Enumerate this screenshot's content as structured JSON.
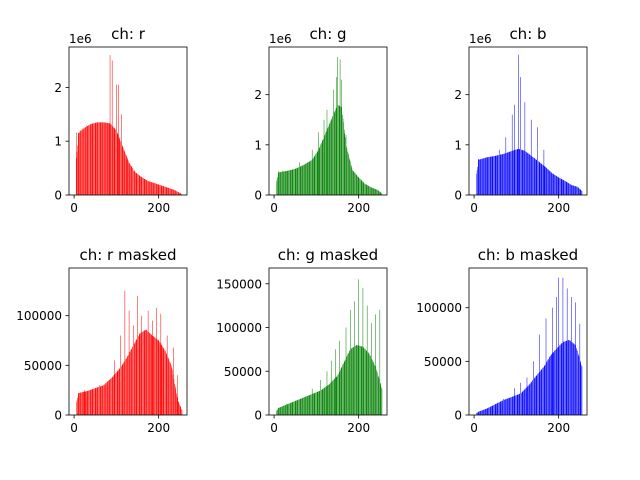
{
  "chart_data": [
    {
      "type": "bar",
      "title": "ch: r",
      "color": "#ff0000",
      "offset_text": "1e6",
      "xlim": [
        -12,
        267
      ],
      "ylim": [
        0,
        2750000
      ],
      "xticks": [
        {
          "value": 0,
          "label": "0"
        },
        {
          "value": 200,
          "label": "200"
        }
      ],
      "yticks": [
        {
          "value": 0,
          "label": "0"
        },
        {
          "value": 1000000,
          "label": "1"
        },
        {
          "value": 2000000,
          "label": "2"
        }
      ],
      "envelope": [
        [
          0,
          0
        ],
        [
          10,
          1150000
        ],
        [
          25,
          1250000
        ],
        [
          40,
          1320000
        ],
        [
          55,
          1350000
        ],
        [
          70,
          1350000
        ],
        [
          85,
          1330000
        ],
        [
          100,
          1200000
        ],
        [
          115,
          900000
        ],
        [
          130,
          600000
        ],
        [
          145,
          420000
        ],
        [
          160,
          330000
        ],
        [
          175,
          260000
        ],
        [
          190,
          220000
        ],
        [
          205,
          180000
        ],
        [
          220,
          140000
        ],
        [
          235,
          100000
        ],
        [
          250,
          40000
        ],
        [
          255,
          10000
        ]
      ],
      "spikes": [
        [
          5,
          1160000
        ],
        [
          15,
          1200000
        ],
        [
          20,
          1230000
        ],
        [
          30,
          1290000
        ],
        [
          85,
          2600000
        ],
        [
          90,
          2500000
        ],
        [
          100,
          2050000
        ],
        [
          105,
          2050000
        ],
        [
          112,
          1500000
        ],
        [
          125,
          700000
        ],
        [
          140,
          450000
        ]
      ],
      "gap_every": 4,
      "x_start": 5,
      "x_end": 255
    },
    {
      "type": "bar",
      "title": "ch: g",
      "color": "#008000",
      "offset_text": "1e6",
      "xlim": [
        -12,
        267
      ],
      "ylim": [
        0,
        2950000
      ],
      "xticks": [
        {
          "value": 0,
          "label": "0"
        },
        {
          "value": 200,
          "label": "200"
        }
      ],
      "yticks": [
        {
          "value": 0,
          "label": "0"
        },
        {
          "value": 1000000,
          "label": "1"
        },
        {
          "value": 2000000,
          "label": "2"
        }
      ],
      "envelope": [
        [
          0,
          0
        ],
        [
          10,
          450000
        ],
        [
          30,
          480000
        ],
        [
          50,
          520000
        ],
        [
          70,
          600000
        ],
        [
          90,
          700000
        ],
        [
          105,
          900000
        ],
        [
          120,
          1200000
        ],
        [
          135,
          1500000
        ],
        [
          150,
          1800000
        ],
        [
          160,
          1750000
        ],
        [
          170,
          1000000
        ],
        [
          185,
          500000
        ],
        [
          200,
          350000
        ],
        [
          215,
          220000
        ],
        [
          230,
          150000
        ],
        [
          245,
          100000
        ],
        [
          255,
          30000
        ]
      ],
      "spikes": [
        [
          10,
          470000
        ],
        [
          20,
          480000
        ],
        [
          60,
          650000
        ],
        [
          90,
          900000
        ],
        [
          105,
          1250000
        ],
        [
          118,
          1500000
        ],
        [
          125,
          1700000
        ],
        [
          140,
          2100000
        ],
        [
          148,
          2350000
        ],
        [
          150,
          2750000
        ],
        [
          156,
          2700000
        ],
        [
          160,
          2300000
        ],
        [
          170,
          1200000
        ]
      ],
      "gap_every": 4,
      "x_start": 5,
      "x_end": 255
    },
    {
      "type": "bar",
      "title": "ch: b",
      "color": "#0000ff",
      "offset_text": "1e6",
      "xlim": [
        -12,
        267
      ],
      "ylim": [
        0,
        2950000
      ],
      "xticks": [
        {
          "value": 0,
          "label": "0"
        },
        {
          "value": 200,
          "label": "200"
        }
      ],
      "yticks": [
        {
          "value": 0,
          "label": "0"
        },
        {
          "value": 1000000,
          "label": "1"
        },
        {
          "value": 2000000,
          "label": "2"
        }
      ],
      "envelope": [
        [
          0,
          0
        ],
        [
          10,
          700000
        ],
        [
          30,
          750000
        ],
        [
          50,
          780000
        ],
        [
          70,
          820000
        ],
        [
          90,
          880000
        ],
        [
          105,
          920000
        ],
        [
          120,
          880000
        ],
        [
          140,
          750000
        ],
        [
          155,
          650000
        ],
        [
          170,
          550000
        ],
        [
          185,
          430000
        ],
        [
          200,
          350000
        ],
        [
          215,
          280000
        ],
        [
          230,
          200000
        ],
        [
          245,
          160000
        ],
        [
          255,
          80000
        ]
      ],
      "spikes": [
        [
          10,
          720000
        ],
        [
          60,
          900000
        ],
        [
          75,
          1150000
        ],
        [
          90,
          1600000
        ],
        [
          95,
          1800000
        ],
        [
          105,
          2800000
        ],
        [
          110,
          2350000
        ],
        [
          120,
          1850000
        ],
        [
          135,
          1500000
        ],
        [
          150,
          1350000
        ],
        [
          165,
          900000
        ]
      ],
      "gap_every": 4,
      "x_start": 5,
      "x_end": 255
    },
    {
      "type": "bar",
      "title": "ch: r masked",
      "color": "#ff0000",
      "offset_text": "",
      "xlim": [
        -12,
        267
      ],
      "ylim": [
        0,
        148000
      ],
      "xticks": [
        {
          "value": 0,
          "label": "0"
        },
        {
          "value": 200,
          "label": "200"
        }
      ],
      "yticks": [
        {
          "value": 0,
          "label": "0"
        },
        {
          "value": 50000,
          "label": "50000"
        },
        {
          "value": 100000,
          "label": "100000"
        }
      ],
      "envelope": [
        [
          0,
          0
        ],
        [
          10,
          22000
        ],
        [
          30,
          24000
        ],
        [
          50,
          27000
        ],
        [
          70,
          30000
        ],
        [
          90,
          38000
        ],
        [
          110,
          48000
        ],
        [
          125,
          58000
        ],
        [
          140,
          70000
        ],
        [
          155,
          82000
        ],
        [
          170,
          86000
        ],
        [
          185,
          80000
        ],
        [
          200,
          75000
        ],
        [
          215,
          65000
        ],
        [
          230,
          50000
        ],
        [
          245,
          15000
        ],
        [
          255,
          5000
        ]
      ],
      "spikes": [
        [
          10,
          22000
        ],
        [
          25,
          25000
        ],
        [
          60,
          30000
        ],
        [
          95,
          55000
        ],
        [
          110,
          80000
        ],
        [
          120,
          125000
        ],
        [
          130,
          105000
        ],
        [
          140,
          90000
        ],
        [
          150,
          120000
        ],
        [
          160,
          100000
        ],
        [
          175,
          105000
        ],
        [
          185,
          95000
        ],
        [
          195,
          108000
        ],
        [
          205,
          102000
        ],
        [
          220,
          80000
        ],
        [
          235,
          68000
        ],
        [
          245,
          40000
        ]
      ],
      "gap_every": 4,
      "x_start": 5,
      "x_end": 255
    },
    {
      "type": "bar",
      "title": "ch: g masked",
      "color": "#008000",
      "offset_text": "",
      "xlim": [
        -12,
        267
      ],
      "ylim": [
        0,
        168000
      ],
      "xticks": [
        {
          "value": 0,
          "label": "0"
        },
        {
          "value": 200,
          "label": "200"
        }
      ],
      "yticks": [
        {
          "value": 0,
          "label": "0"
        },
        {
          "value": 50000,
          "label": "50000"
        },
        {
          "value": 100000,
          "label": "100000"
        },
        {
          "value": 150000,
          "label": "150000"
        }
      ],
      "envelope": [
        [
          0,
          0
        ],
        [
          10,
          8000
        ],
        [
          30,
          12000
        ],
        [
          50,
          16000
        ],
        [
          70,
          20000
        ],
        [
          90,
          24000
        ],
        [
          110,
          28000
        ],
        [
          130,
          35000
        ],
        [
          150,
          45000
        ],
        [
          165,
          60000
        ],
        [
          180,
          75000
        ],
        [
          195,
          80000
        ],
        [
          210,
          78000
        ],
        [
          225,
          70000
        ],
        [
          240,
          55000
        ],
        [
          255,
          30000
        ]
      ],
      "spikes": [
        [
          10,
          8000
        ],
        [
          30,
          13000
        ],
        [
          60,
          18000
        ],
        [
          90,
          30000
        ],
        [
          110,
          40000
        ],
        [
          125,
          50000
        ],
        [
          135,
          62000
        ],
        [
          145,
          75000
        ],
        [
          155,
          85000
        ],
        [
          170,
          100000
        ],
        [
          180,
          120000
        ],
        [
          190,
          130000
        ],
        [
          200,
          155000
        ],
        [
          210,
          145000
        ],
        [
          220,
          125000
        ],
        [
          230,
          105000
        ],
        [
          240,
          115000
        ],
        [
          250,
          120000
        ]
      ],
      "gap_every": 4,
      "x_start": 5,
      "x_end": 255
    },
    {
      "type": "bar",
      "title": "ch: b masked",
      "color": "#0000ff",
      "offset_text": "",
      "xlim": [
        -12,
        267
      ],
      "ylim": [
        0,
        137000
      ],
      "xticks": [
        {
          "value": 0,
          "label": "0"
        },
        {
          "value": 200,
          "label": "200"
        }
      ],
      "yticks": [
        {
          "value": 0,
          "label": "0"
        },
        {
          "value": 50000,
          "label": "50000"
        },
        {
          "value": 100000,
          "label": "100000"
        }
      ],
      "envelope": [
        [
          0,
          0
        ],
        [
          10,
          3000
        ],
        [
          30,
          6000
        ],
        [
          50,
          10000
        ],
        [
          70,
          14000
        ],
        [
          90,
          17000
        ],
        [
          110,
          20000
        ],
        [
          130,
          28000
        ],
        [
          150,
          38000
        ],
        [
          165,
          45000
        ],
        [
          180,
          55000
        ],
        [
          195,
          62000
        ],
        [
          210,
          68000
        ],
        [
          225,
          70000
        ],
        [
          240,
          65000
        ],
        [
          255,
          45000
        ]
      ],
      "spikes": [
        [
          10,
          3000
        ],
        [
          40,
          8000
        ],
        [
          70,
          15000
        ],
        [
          95,
          25000
        ],
        [
          110,
          30000
        ],
        [
          125,
          35000
        ],
        [
          140,
          50000
        ],
        [
          155,
          75000
        ],
        [
          170,
          90000
        ],
        [
          185,
          100000
        ],
        [
          195,
          110000
        ],
        [
          200,
          128000
        ],
        [
          210,
          128000
        ],
        [
          220,
          118000
        ],
        [
          230,
          110000
        ],
        [
          240,
          105000
        ],
        [
          250,
          85000
        ]
      ],
      "gap_every": 4,
      "x_start": 5,
      "x_end": 255
    }
  ]
}
